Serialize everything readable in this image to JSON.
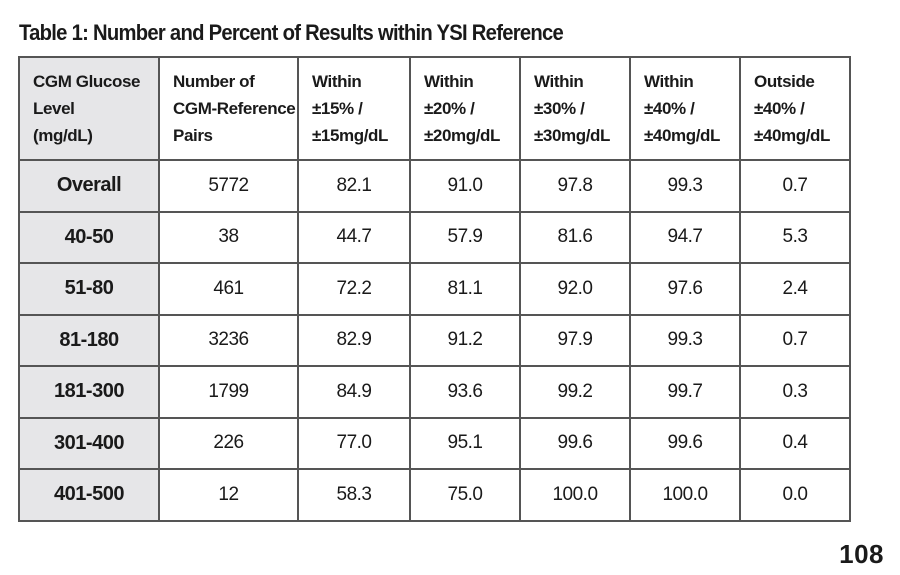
{
  "title": "Table 1: Number and Percent of Results within YSI Reference",
  "table": {
    "headers": [
      "CGM Glucose\nLevel\n(mg/dL)",
      "Number of\nCGM-Reference\nPairs",
      "Within\n±15% /\n±15mg/dL",
      "Within\n±20% /\n±20mg/dL",
      "Within\n±30% /\n±30mg/dL",
      "Within\n±40% /\n±40mg/dL",
      "Outside\n±40% /\n±40mg/dL"
    ],
    "rows": [
      [
        "Overall",
        "5772",
        "82.1",
        "91.0",
        "97.8",
        "99.3",
        "0.7"
      ],
      [
        "40-50",
        "38",
        "44.7",
        "57.9",
        "81.6",
        "94.7",
        "5.3"
      ],
      [
        "51-80",
        "461",
        "72.2",
        "81.1",
        "92.0",
        "97.6",
        "2.4"
      ],
      [
        "81-180",
        "3236",
        "82.9",
        "91.2",
        "97.9",
        "99.3",
        "0.7"
      ],
      [
        "181-300",
        "1799",
        "84.9",
        "93.6",
        "99.2",
        "99.7",
        "0.3"
      ],
      [
        "301-400",
        "226",
        "77.0",
        "95.1",
        "99.6",
        "99.6",
        "0.4"
      ],
      [
        "401-500",
        "12",
        "58.3",
        "75.0",
        "100.0",
        "100.0",
        "0.0"
      ]
    ]
  },
  "page_number": "108",
  "colors": {
    "label_column_background": "#e6e6e8",
    "border": "#555555",
    "text": "#1a1a1a"
  }
}
